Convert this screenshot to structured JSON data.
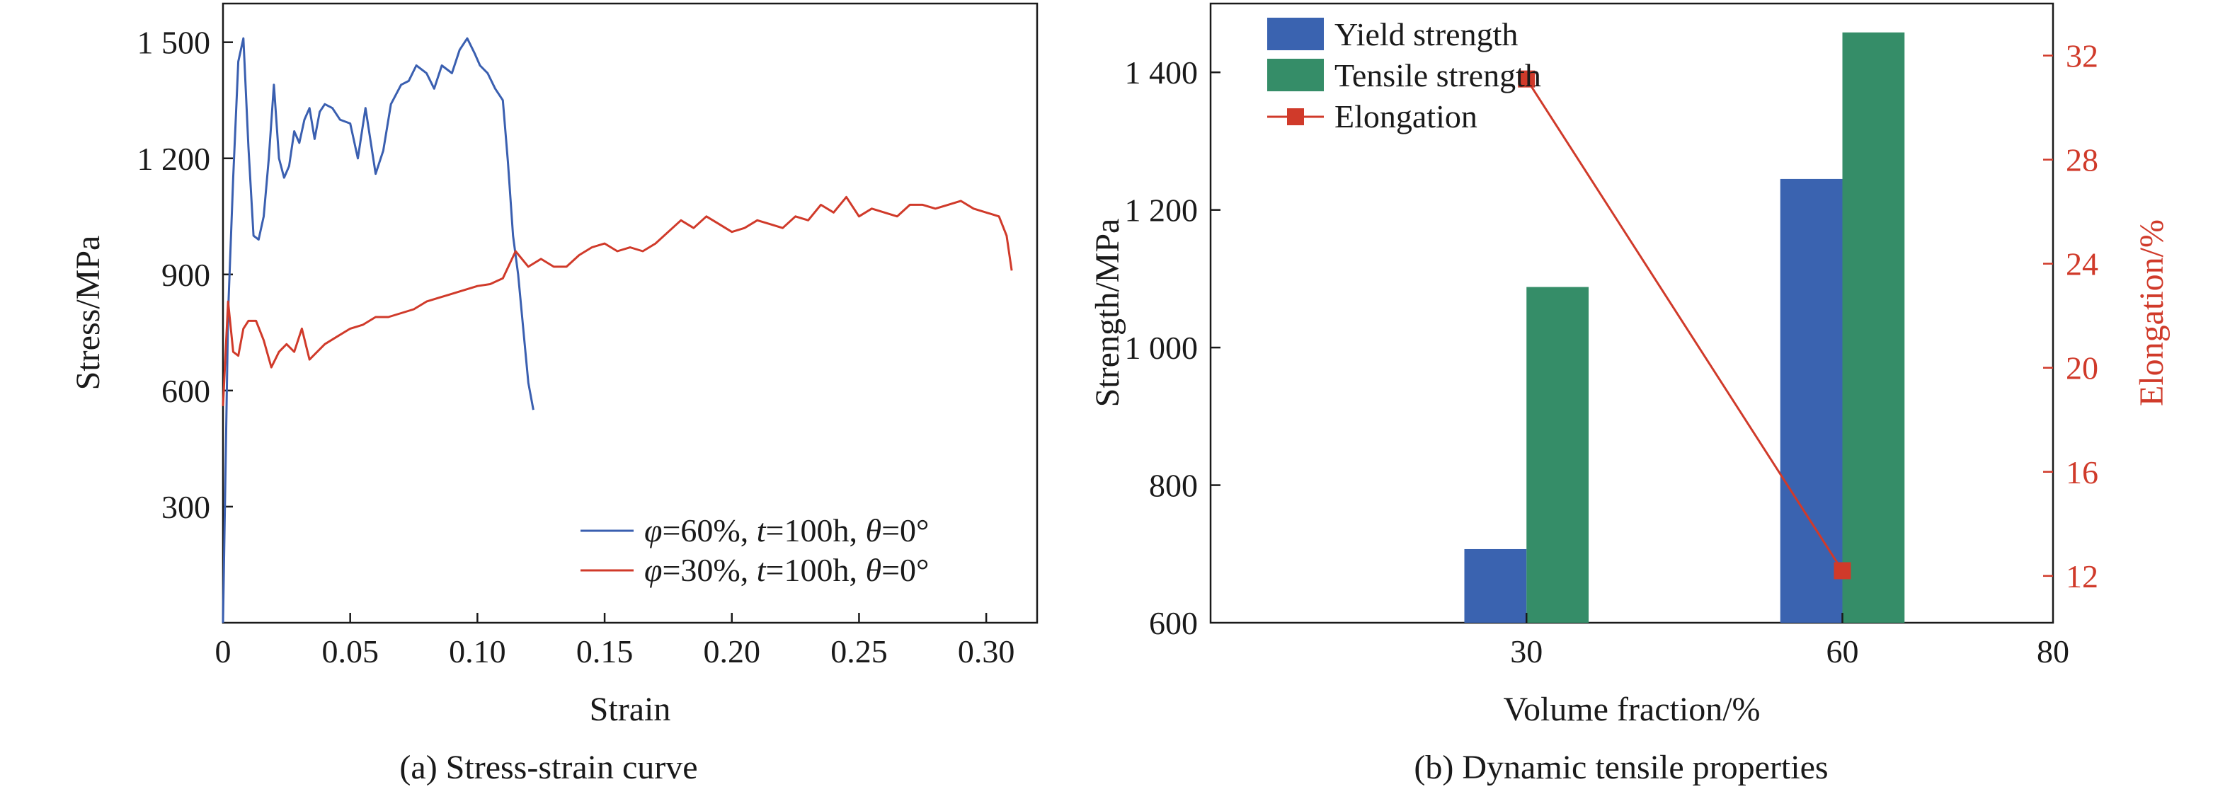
{
  "chart_data": [
    {
      "type": "line",
      "caption": "(a) Stress-strain curve",
      "xlabel": "Strain",
      "ylabel": "Stress/MPa",
      "xlim": [
        0,
        0.32
      ],
      "ylim": [
        0,
        1600
      ],
      "xticks": [
        0,
        0.05,
        0.1,
        0.15,
        0.2,
        0.25,
        0.3
      ],
      "xtick_labels": [
        "0",
        "0.05",
        "0.10",
        "0.15",
        "0.20",
        "0.25",
        "0.30"
      ],
      "yticks": [
        300,
        600,
        900,
        1200,
        1500
      ],
      "ytick_labels": [
        "300",
        "600",
        "900",
        "1 200",
        "1 500"
      ],
      "legend_position": "bottom-right",
      "legend": [
        {
          "sym1": "φ",
          "t1": "=60%, ",
          "sym2": "t",
          "t2": "=100h, ",
          "sym3": "θ",
          "t3": "=0°",
          "color": "#3a5fb0"
        },
        {
          "sym1": "φ",
          "t1": "=30%, ",
          "sym2": "t",
          "t2": "=100h, ",
          "sym3": "θ",
          "t3": "=0°",
          "color": "#d03a2a"
        }
      ],
      "series": [
        {
          "color": "#3a5fb0",
          "x": [
            0,
            0.002,
            0.004,
            0.006,
            0.008,
            0.01,
            0.012,
            0.014,
            0.016,
            0.018,
            0.02,
            0.022,
            0.024,
            0.026,
            0.028,
            0.03,
            0.032,
            0.034,
            0.036,
            0.038,
            0.04,
            0.043,
            0.046,
            0.05,
            0.053,
            0.056,
            0.06,
            0.063,
            0.066,
            0.07,
            0.073,
            0.076,
            0.08,
            0.083,
            0.086,
            0.09,
            0.093,
            0.096,
            0.099,
            0.101,
            0.104,
            0.107,
            0.11,
            0.112,
            0.114,
            0.116,
            0.118,
            0.12,
            0.122
          ],
          "y": [
            0,
            800,
            1150,
            1450,
            1510,
            1230,
            1000,
            990,
            1050,
            1200,
            1390,
            1200,
            1150,
            1180,
            1270,
            1240,
            1300,
            1330,
            1250,
            1320,
            1340,
            1330,
            1300,
            1290,
            1200,
            1330,
            1160,
            1220,
            1340,
            1390,
            1400,
            1440,
            1420,
            1380,
            1440,
            1420,
            1480,
            1510,
            1470,
            1440,
            1420,
            1380,
            1350,
            1190,
            1000,
            900,
            760,
            620,
            550
          ]
        },
        {
          "color": "#d03a2a",
          "x": [
            0,
            0.002,
            0.004,
            0.006,
            0.008,
            0.01,
            0.013,
            0.016,
            0.019,
            0.022,
            0.025,
            0.028,
            0.031,
            0.034,
            0.037,
            0.04,
            0.045,
            0.05,
            0.055,
            0.06,
            0.065,
            0.07,
            0.075,
            0.08,
            0.085,
            0.09,
            0.095,
            0.1,
            0.105,
            0.11,
            0.115,
            0.12,
            0.125,
            0.13,
            0.135,
            0.14,
            0.145,
            0.15,
            0.155,
            0.16,
            0.165,
            0.17,
            0.175,
            0.18,
            0.185,
            0.19,
            0.195,
            0.2,
            0.205,
            0.21,
            0.215,
            0.22,
            0.225,
            0.23,
            0.235,
            0.24,
            0.245,
            0.25,
            0.255,
            0.26,
            0.265,
            0.27,
            0.275,
            0.28,
            0.285,
            0.29,
            0.295,
            0.3,
            0.305,
            0.308,
            0.31
          ],
          "y": [
            560,
            830,
            700,
            690,
            760,
            780,
            780,
            730,
            660,
            700,
            720,
            700,
            760,
            680,
            700,
            720,
            740,
            760,
            770,
            790,
            790,
            800,
            810,
            830,
            840,
            850,
            860,
            870,
            875,
            890,
            960,
            920,
            940,
            920,
            920,
            950,
            970,
            980,
            960,
            970,
            960,
            980,
            1010,
            1040,
            1020,
            1050,
            1030,
            1010,
            1020,
            1040,
            1030,
            1020,
            1050,
            1040,
            1080,
            1060,
            1100,
            1050,
            1070,
            1060,
            1050,
            1080,
            1080,
            1070,
            1080,
            1090,
            1070,
            1060,
            1050,
            1000,
            910
          ]
        }
      ]
    },
    {
      "type": "bar",
      "caption": "(b) Dynamic tensile properties",
      "xlabel": "Volume fraction/%",
      "ylabel": "Strength/MPa",
      "y2label": "Elongation/%",
      "xlim": [
        0,
        80
      ],
      "xticks": [
        30,
        60,
        80
      ],
      "xtick_labels": [
        "30",
        "60",
        "80"
      ],
      "ylim": [
        600,
        1500
      ],
      "yticks": [
        600,
        800,
        1000,
        1200,
        1400
      ],
      "ytick_labels": [
        "600",
        "800",
        "1 000",
        "1 200",
        "1 400"
      ],
      "y2lim": [
        10.2,
        34
      ],
      "y2ticks": [
        12,
        16,
        20,
        24,
        28,
        32
      ],
      "y2tick_labels": [
        "12",
        "16",
        "20",
        "24",
        "28",
        "32"
      ],
      "legend_position": "top-left",
      "categories": [
        30,
        60
      ],
      "series": [
        {
          "name": "Yield strength",
          "kind": "bar",
          "color": "#3a63b0",
          "values": [
            707,
            1245
          ]
        },
        {
          "name": "Tensile strength",
          "kind": "bar",
          "color": "#358d68",
          "values": [
            1088,
            1458
          ]
        },
        {
          "name": "Elongation",
          "kind": "line",
          "color": "#d03a2a",
          "values": [
            31.1,
            12.2
          ]
        }
      ]
    }
  ]
}
